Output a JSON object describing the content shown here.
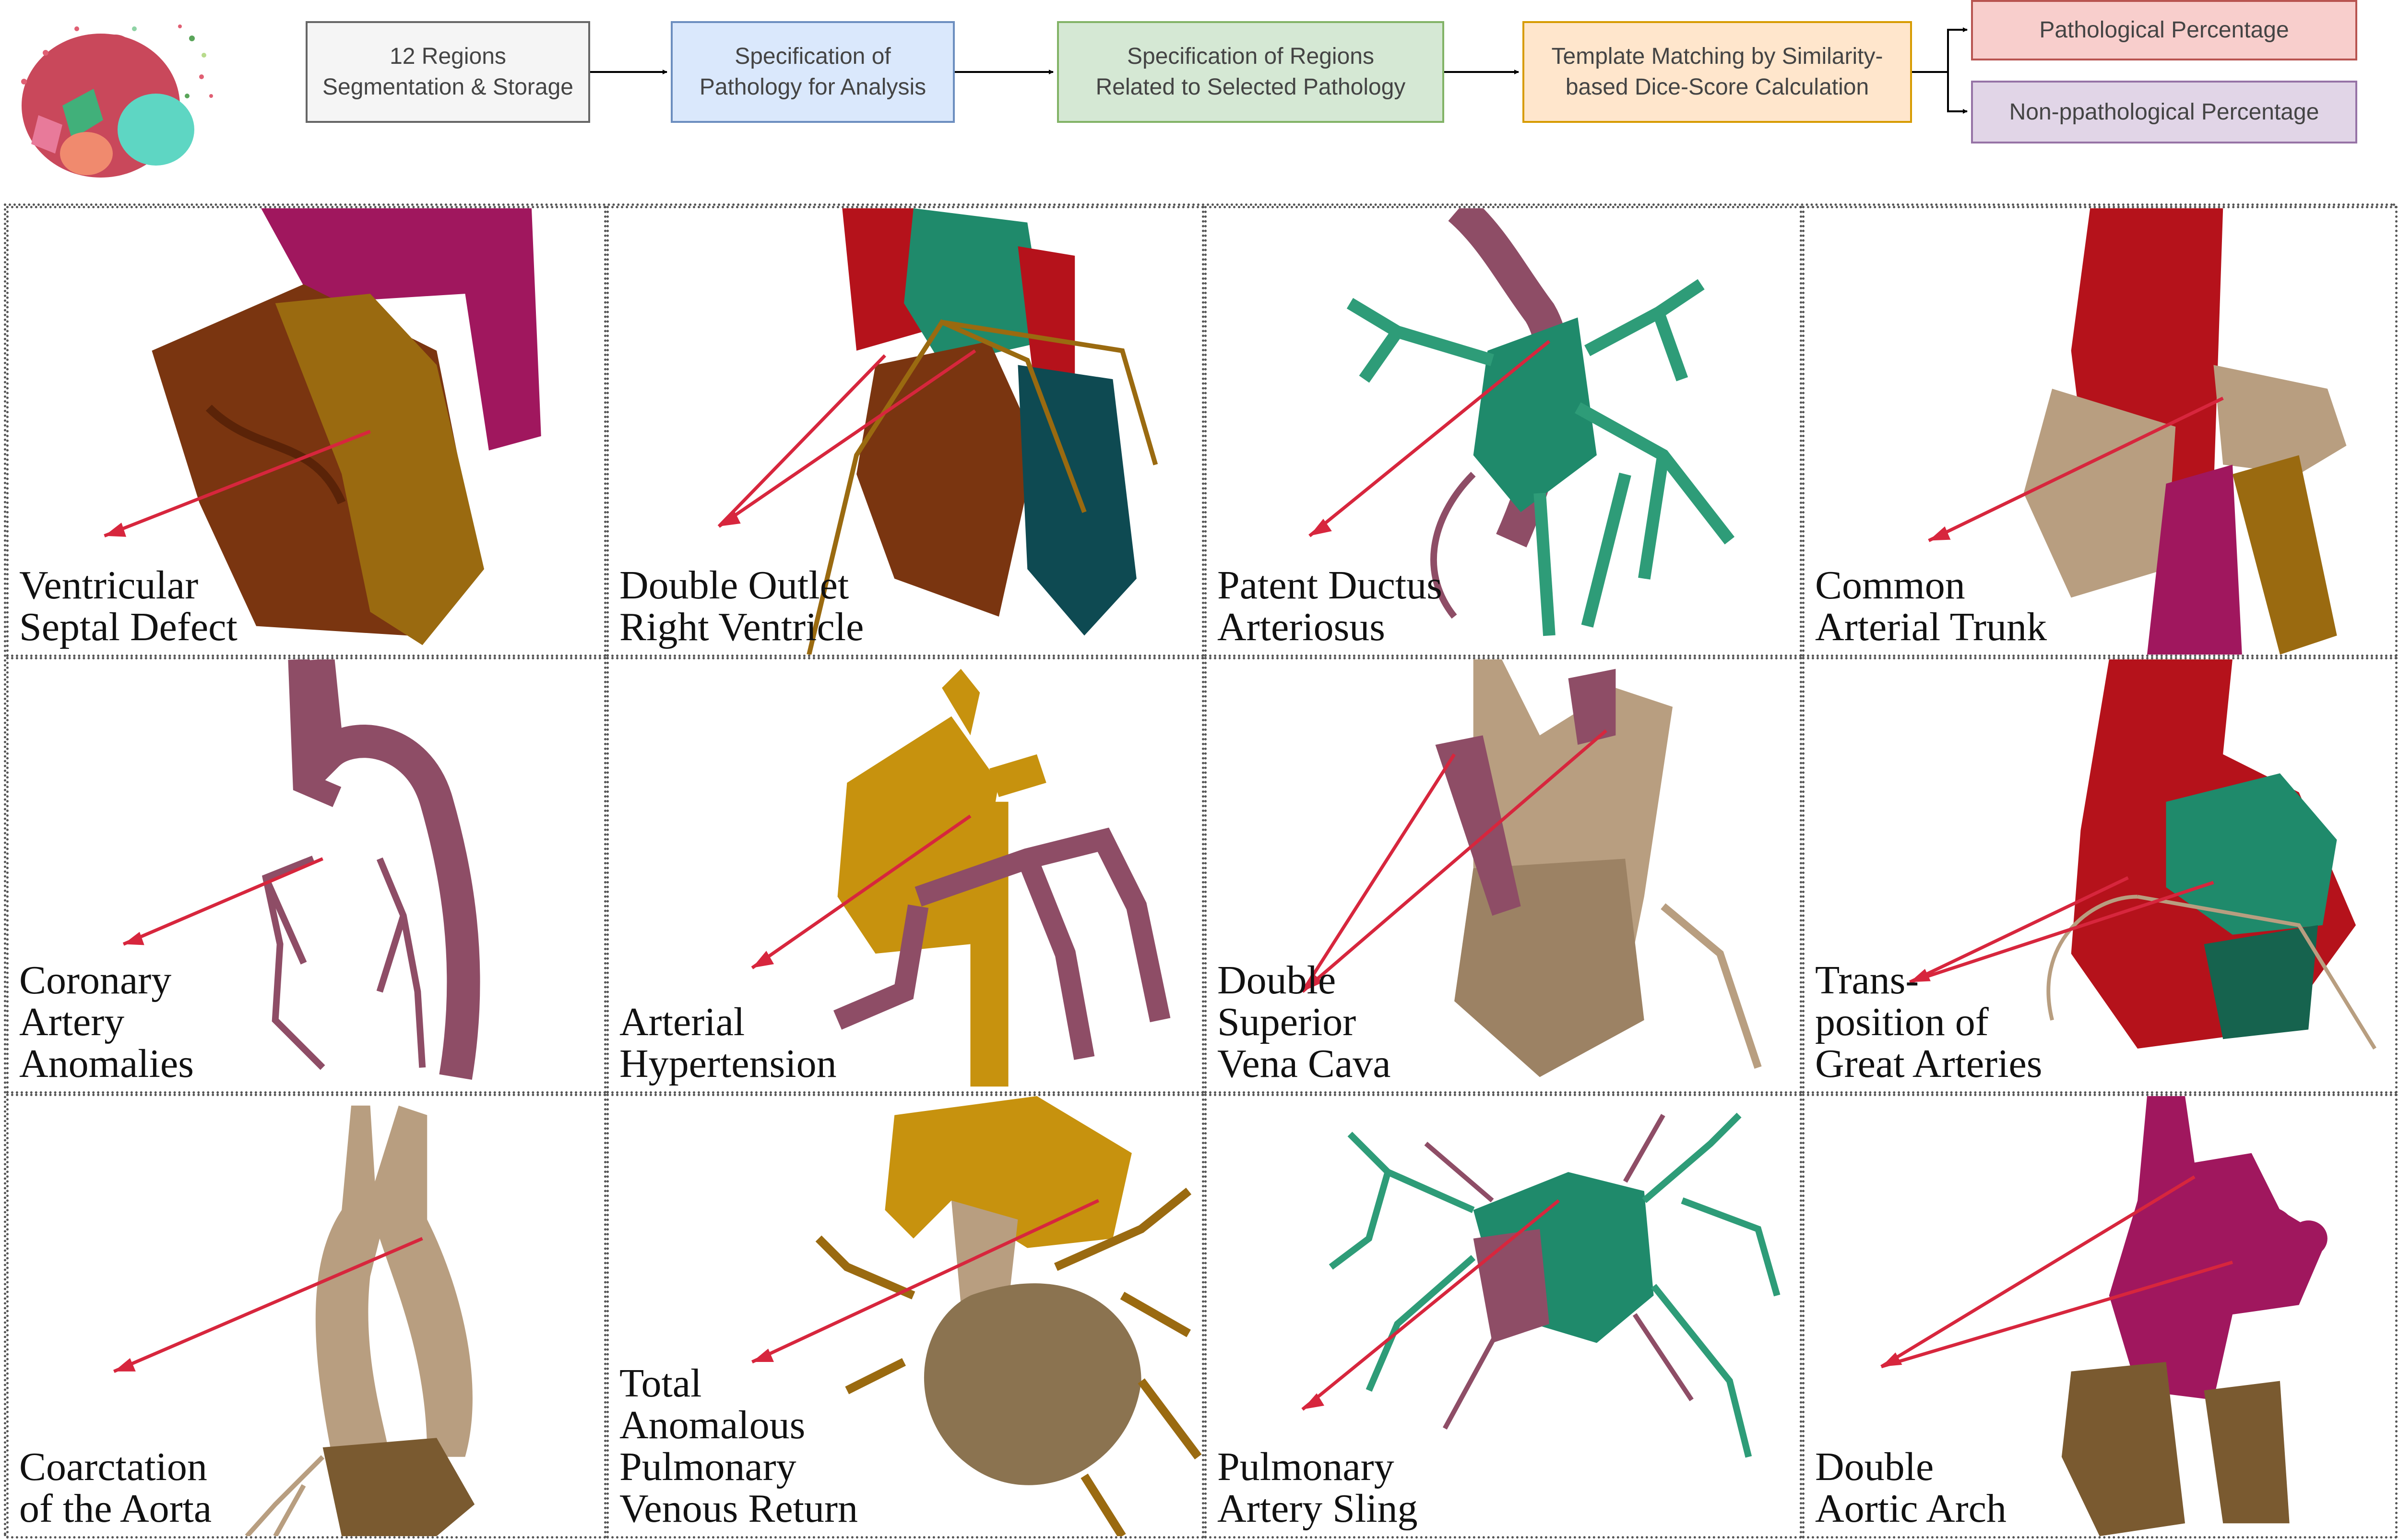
{
  "workflow": {
    "boxes": [
      {
        "text": "12 Regions\nSegmentation & Storage",
        "style": "b-gray"
      },
      {
        "text": "Specification of\nPathology for Analysis",
        "style": "b-blue"
      },
      {
        "text": "Specification of Regions\nRelated to Selected Pathology",
        "style": "b-green"
      },
      {
        "text": "Template Matching by Similarity-\nbased Dice-Score Calculation",
        "style": "b-orange"
      }
    ],
    "outputs": [
      {
        "text": "Pathological Percentage",
        "style": "b-red"
      },
      {
        "text": "Non-ppathological Percentage",
        "style": "b-purple"
      }
    ]
  },
  "colors": {
    "arrow": "#d7263d",
    "aorta": "#b5121b",
    "pulmonary_teal": "#1f8a6b",
    "ochre": "#9a6a10",
    "rust": "#7a3510",
    "magenta": "#a0175e",
    "mauve": "#8e4d66",
    "tan": "#b89e80",
    "yellow_ochre": "#c7920e",
    "dark_teal": "#0e4a52"
  },
  "panels": [
    {
      "label": "Ventricular\nSeptal Defect"
    },
    {
      "label": "Double Outlet\nRight Ventricle"
    },
    {
      "label": "Patent Ductus\nArteriosus"
    },
    {
      "label": "Common\nArterial Trunk"
    },
    {
      "label": "Coronary\nArtery\nAnomalies"
    },
    {
      "label": "Arterial\nHypertension"
    },
    {
      "label": "Double\nSuperior\nVena Cava"
    },
    {
      "label": "Trans-\nposition of\nGreat Arteries"
    },
    {
      "label": "Coarctation\nof the Aorta"
    },
    {
      "label": "Total\nAnomalous\nPulmonary\nVenous Return"
    },
    {
      "label": "Pulmonary\nArtery Sling"
    },
    {
      "label": "Double\nAortic Arch"
    }
  ]
}
